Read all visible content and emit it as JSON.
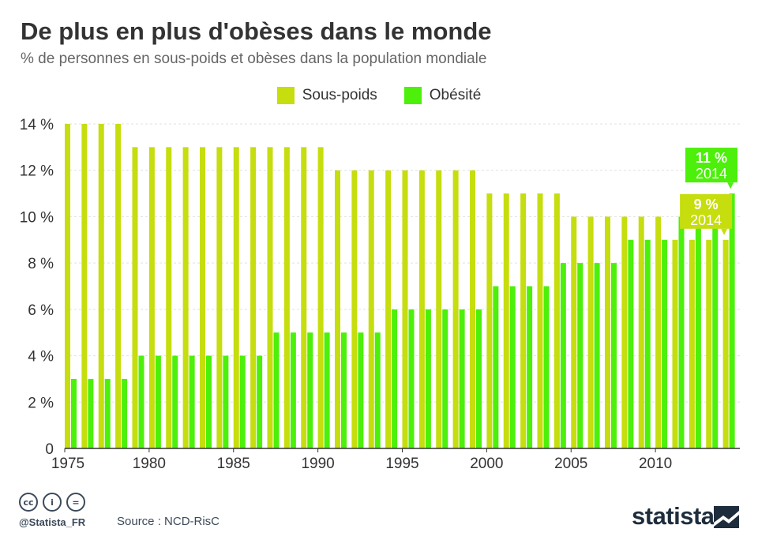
{
  "title": "De plus en plus d'obèses dans le monde",
  "subtitle": "% de personnes en sous-poids et obèses dans la population mondiale",
  "legend": [
    {
      "label": "Sous-poids",
      "color": "#c6dd0e"
    },
    {
      "label": "Obésité",
      "color": "#4cf00a"
    }
  ],
  "footer": {
    "icons": [
      "cc-icon",
      "attribution-icon",
      "no-derivatives-icon"
    ],
    "icon_glyphs": [
      "cc",
      "i",
      "="
    ],
    "handle": "@Statista_FR",
    "source": "Source : NCD-RisC",
    "brand": "statista"
  },
  "chart_data": {
    "type": "bar",
    "x": [
      1975,
      1976,
      1977,
      1978,
      1979,
      1980,
      1981,
      1982,
      1983,
      1984,
      1985,
      1986,
      1987,
      1988,
      1989,
      1990,
      1991,
      1992,
      1993,
      1994,
      1995,
      1996,
      1997,
      1998,
      1999,
      2000,
      2001,
      2002,
      2003,
      2004,
      2005,
      2006,
      2007,
      2008,
      2009,
      2010,
      2011,
      2012,
      2013,
      2014
    ],
    "xticks": [
      "1975",
      "1980",
      "1985",
      "1990",
      "1995",
      "2000",
      "2005",
      "2010"
    ],
    "series": [
      {
        "name": "Sous-poids",
        "color": "#c6dd0e",
        "values": [
          14,
          14,
          14,
          14,
          13,
          13,
          13,
          13,
          13,
          13,
          13,
          13,
          13,
          13,
          13,
          13,
          12,
          12,
          12,
          12,
          12,
          12,
          12,
          12,
          12,
          11,
          11,
          11,
          11,
          11,
          10,
          10,
          10,
          10,
          10,
          10,
          9,
          9,
          9,
          9
        ]
      },
      {
        "name": "Obésité",
        "color": "#4cf00a",
        "values": [
          3,
          3,
          3,
          3,
          4,
          4,
          4,
          4,
          4,
          4,
          4,
          4,
          5,
          5,
          5,
          5,
          5,
          5,
          5,
          6,
          6,
          6,
          6,
          6,
          6,
          7,
          7,
          7,
          7,
          8,
          8,
          8,
          8,
          9,
          9,
          9,
          10,
          10,
          10,
          11
        ]
      }
    ],
    "ylim": [
      0,
      14
    ],
    "yticks": [
      "0",
      "2 %",
      "4 %",
      "6 %",
      "8 %",
      "10 %",
      "12 %",
      "14 %"
    ],
    "annotations": [
      {
        "series": "Obésité",
        "value_label": "11 %",
        "year_label": "2014",
        "color": "#4cf00a"
      },
      {
        "series": "Sous-poids",
        "value_label": "9 %",
        "year_label": "2014",
        "color": "#c6dd0e"
      }
    ],
    "grid": true,
    "legend_position": "top-center"
  }
}
